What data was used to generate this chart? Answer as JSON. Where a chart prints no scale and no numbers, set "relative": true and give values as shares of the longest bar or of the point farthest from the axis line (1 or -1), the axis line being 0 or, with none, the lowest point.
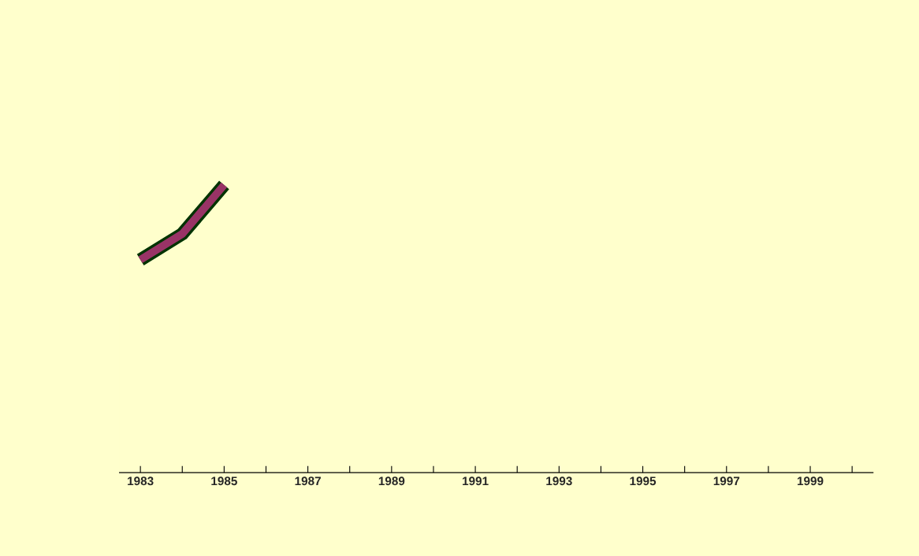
{
  "chart_data": {
    "type": "line",
    "relative": true,
    "categories": [
      "1983",
      null,
      "1985",
      null,
      "1987",
      null,
      "1989",
      null,
      "1991",
      null,
      "1993",
      null,
      "1995",
      null,
      "1997",
      null,
      "1999",
      null
    ],
    "series": [
      {
        "color": "#993366",
        "values": [
          0.74,
          0.83,
          1,
          null,
          null,
          null,
          null,
          null,
          null,
          null,
          null,
          null,
          null,
          null,
          null,
          null,
          null,
          null
        ]
      }
    ],
    "grid": false,
    "legend": false,
    "marker": "none",
    "line_style": "solid"
  }
}
